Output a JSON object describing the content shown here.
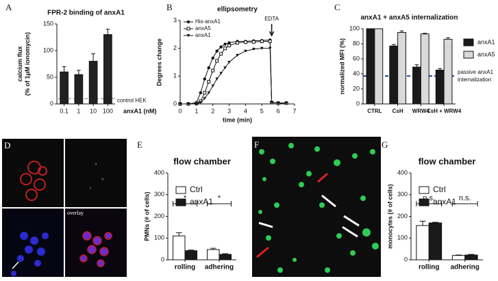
{
  "chart_data": [
    {
      "panel": "A",
      "type": "bar",
      "title": "FPR-2 binding of anxA1",
      "ylabel": [
        "calcium flux",
        "(% of 1μM ionomycin)"
      ],
      "xlabel": "anxA1 (nM)",
      "categories": [
        "0.1",
        "1",
        "10",
        "100"
      ],
      "values": [
        60,
        55,
        80,
        130
      ],
      "errors": [
        10,
        8,
        14,
        10
      ],
      "color": "#222222",
      "ylim": [
        0,
        150
      ],
      "yticks": [
        0,
        50,
        100,
        150
      ],
      "reference_line": {
        "value": 10,
        "label": [
          "control HEK"
        ],
        "color": "#bbbbbb"
      }
    },
    {
      "panel": "B",
      "type": "line",
      "title": "ellipsometry",
      "ylabel": [
        "Degrees change"
      ],
      "xlabel": "time (min)",
      "annotation": "EDTA",
      "legend": "upper-left",
      "x": [
        0,
        0.5,
        1,
        1.25,
        1.5,
        1.75,
        2,
        2.25,
        2.5,
        2.75,
        3,
        3.5,
        4,
        4.5,
        5,
        5.5,
        5.6,
        6,
        6.5
      ],
      "series": [
        {
          "name": "His-anxA1",
          "color": "#111111",
          "marker": "circle",
          "values": [
            0,
            0,
            0.05,
            0.4,
            0.9,
            1.3,
            1.65,
            1.9,
            2.05,
            2.15,
            2.2,
            2.25,
            2.25,
            2.27,
            2.28,
            2.3,
            0.05,
            0.03,
            0.03
          ]
        },
        {
          "name": "anxA5",
          "color": "#111111",
          "marker": "square",
          "values": [
            0,
            0,
            0.02,
            0.1,
            0.4,
            0.8,
            1.2,
            1.55,
            1.8,
            2.0,
            2.1,
            2.2,
            2.22,
            2.23,
            2.25,
            2.25,
            0.05,
            0.03,
            0.03
          ]
        },
        {
          "name": "anxA1",
          "color": "#111111",
          "marker": "triangle",
          "values": [
            0,
            0,
            0,
            0.05,
            0.2,
            0.4,
            0.65,
            0.9,
            1.1,
            1.3,
            1.5,
            1.75,
            1.9,
            1.97,
            2.0,
            2.0,
            0.05,
            0.03,
            0.03
          ]
        }
      ],
      "xlim": [
        0,
        7
      ],
      "xticks": [
        0,
        1,
        2,
        3,
        4,
        5,
        6,
        7
      ],
      "ylim": [
        0,
        3
      ],
      "yticks": [
        0,
        1,
        2,
        3
      ]
    },
    {
      "panel": "C",
      "type": "bar",
      "title": "anxA1 + anxA5 internalization",
      "ylabel": [
        "normalized MFI (%)"
      ],
      "legend": "right",
      "categories": [
        "CTRL",
        "CsH",
        "WRW4",
        "CsH + WRW4"
      ],
      "series": [
        {
          "name": "anxA1",
          "color": "#1a1a1a",
          "values": [
            100,
            77,
            49,
            45
          ],
          "errors": [
            0,
            2,
            3,
            2
          ]
        },
        {
          "name": "anxA5",
          "color": "#d9d9d9",
          "values": [
            100,
            95,
            93,
            86
          ],
          "errors": [
            0,
            2,
            1,
            2
          ]
        }
      ],
      "ylim": [
        0,
        100
      ],
      "yticks": [
        0,
        20,
        40,
        60,
        80,
        100
      ],
      "reference_line": {
        "value": 37,
        "label": [
          "passive anxA1",
          "internalization"
        ],
        "color": "#1f3d99"
      }
    },
    {
      "panel": "E",
      "type": "bar",
      "title": "flow chamber",
      "ylabel": [
        "PMNs (# of cells)"
      ],
      "legend": "upper-left",
      "categories": [
        "rolling",
        "adhering"
      ],
      "annotations": [
        "*",
        "*"
      ],
      "series": [
        {
          "name": "Ctrl",
          "color": "#ffffff",
          "values": [
            110,
            47
          ],
          "errors": [
            15,
            6
          ]
        },
        {
          "name": "anxA1",
          "color": "#1a1a1a",
          "values": [
            42,
            25
          ],
          "errors": [
            3,
            3
          ]
        }
      ],
      "ylim": [
        0,
        400
      ],
      "yticks": [
        0,
        100,
        200,
        300,
        400
      ]
    },
    {
      "panel": "G",
      "type": "bar",
      "title": "flow chamber",
      "ylabel": [
        "monocytes  (# of cells)"
      ],
      "legend": "upper-left",
      "categories": [
        "rolling",
        "adhering"
      ],
      "annotations": [
        "n.s.",
        "n.s."
      ],
      "series": [
        {
          "name": "Ctrl",
          "color": "#ffffff",
          "values": [
            158,
            20
          ],
          "errors": [
            20,
            2
          ]
        },
        {
          "name": "anxA1",
          "color": "#1a1a1a",
          "values": [
            170,
            22
          ],
          "errors": [
            3,
            3
          ]
        }
      ],
      "ylim": [
        0,
        400
      ],
      "yticks": [
        0,
        100,
        200,
        300,
        400
      ]
    }
  ],
  "images": [
    {
      "panel": "D",
      "label": "overlay"
    },
    {
      "panel": "F"
    }
  ]
}
